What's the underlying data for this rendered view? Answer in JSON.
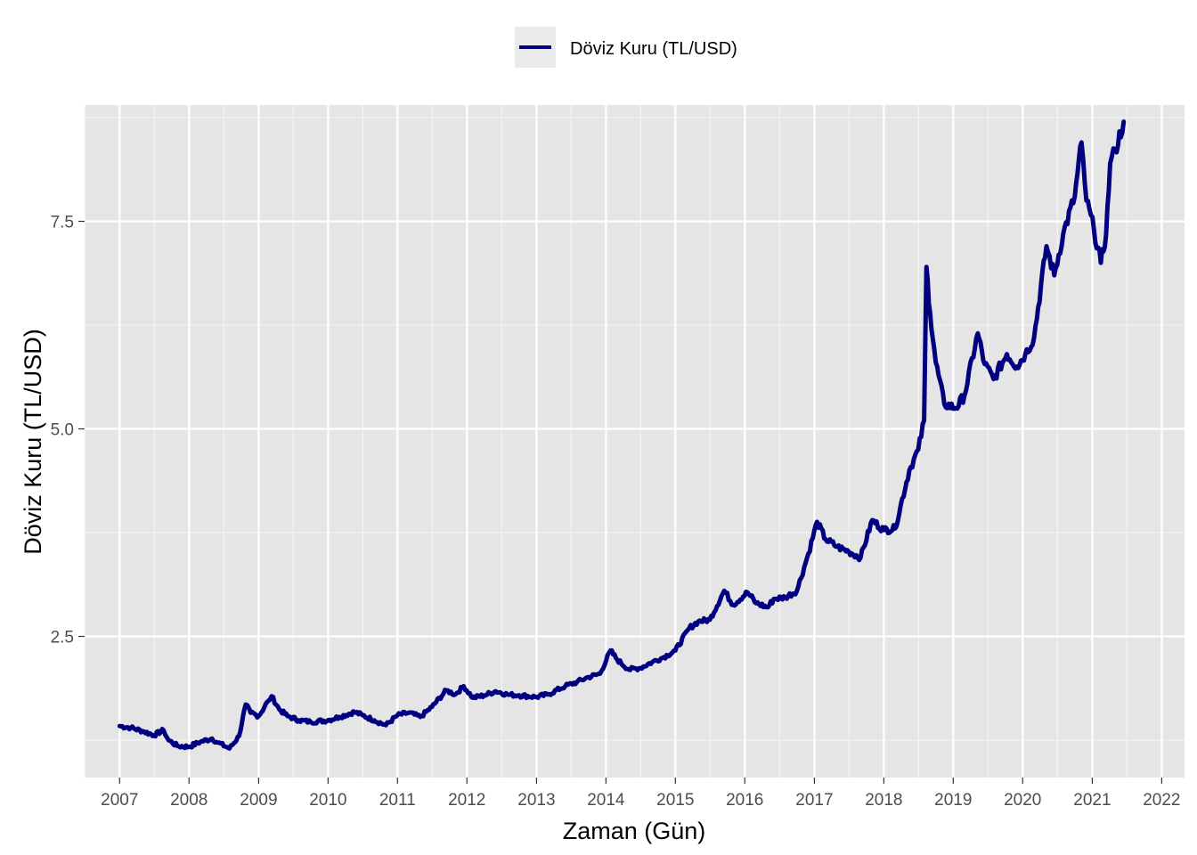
{
  "chart_data": {
    "type": "line",
    "title": "",
    "xlabel": "Zaman (Gün)",
    "ylabel": "Döviz Kuru (TL/USD)",
    "xlim": [
      "2006-07-01",
      "2022-05-01"
    ],
    "ylim": [
      0.8,
      8.9
    ],
    "x_ticks": [
      "2007",
      "2008",
      "2009",
      "2010",
      "2011",
      "2012",
      "2013",
      "2014",
      "2015",
      "2016",
      "2017",
      "2018",
      "2019",
      "2020",
      "2021",
      "2022"
    ],
    "y_ticks": [
      2.5,
      5.0,
      7.5
    ],
    "y_tick_labels": [
      "2.5",
      "5.0",
      "7.5"
    ],
    "grid": true,
    "legend_position": "top",
    "series": [
      {
        "name": "Döviz Kuru (TL/USD)",
        "color": "#000080",
        "points": [
          [
            "2007-01-01",
            1.42
          ],
          [
            "2007-03-01",
            1.4
          ],
          [
            "2007-05-01",
            1.36
          ],
          [
            "2007-07-01",
            1.31
          ],
          [
            "2007-08-20",
            1.37
          ],
          [
            "2007-09-15",
            1.25
          ],
          [
            "2007-11-01",
            1.18
          ],
          [
            "2008-01-01",
            1.17
          ],
          [
            "2008-03-01",
            1.23
          ],
          [
            "2008-05-01",
            1.27
          ],
          [
            "2008-06-01",
            1.22
          ],
          [
            "2008-08-01",
            1.15
          ],
          [
            "2008-09-20",
            1.3
          ],
          [
            "2008-10-25",
            1.68
          ],
          [
            "2008-11-20",
            1.58
          ],
          [
            "2009-01-01",
            1.54
          ],
          [
            "2009-02-20",
            1.72
          ],
          [
            "2009-03-10",
            1.78
          ],
          [
            "2009-04-20",
            1.62
          ],
          [
            "2009-06-01",
            1.54
          ],
          [
            "2009-08-01",
            1.49
          ],
          [
            "2009-10-01",
            1.47
          ],
          [
            "2010-01-01",
            1.49
          ],
          [
            "2010-03-01",
            1.53
          ],
          [
            "2010-05-20",
            1.59
          ],
          [
            "2010-07-01",
            1.55
          ],
          [
            "2010-09-01",
            1.49
          ],
          [
            "2010-11-01",
            1.43
          ],
          [
            "2011-01-01",
            1.55
          ],
          [
            "2011-03-01",
            1.58
          ],
          [
            "2011-05-01",
            1.53
          ],
          [
            "2011-07-01",
            1.65
          ],
          [
            "2011-09-15",
            1.85
          ],
          [
            "2011-11-01",
            1.8
          ],
          [
            "2011-12-15",
            1.9
          ],
          [
            "2012-02-01",
            1.76
          ],
          [
            "2012-04-01",
            1.79
          ],
          [
            "2012-06-01",
            1.84
          ],
          [
            "2012-08-01",
            1.8
          ],
          [
            "2012-10-01",
            1.79
          ],
          [
            "2013-01-01",
            1.77
          ],
          [
            "2013-03-01",
            1.8
          ],
          [
            "2013-06-01",
            1.9
          ],
          [
            "2013-08-01",
            1.95
          ],
          [
            "2013-10-01",
            2.01
          ],
          [
            "2013-12-01",
            2.05
          ],
          [
            "2014-01-25",
            2.33
          ],
          [
            "2014-03-01",
            2.22
          ],
          [
            "2014-05-01",
            2.1
          ],
          [
            "2014-07-01",
            2.12
          ],
          [
            "2014-09-01",
            2.19
          ],
          [
            "2014-11-01",
            2.25
          ],
          [
            "2015-01-01",
            2.33
          ],
          [
            "2015-03-15",
            2.6
          ],
          [
            "2015-05-01",
            2.68
          ],
          [
            "2015-07-01",
            2.7
          ],
          [
            "2015-09-15",
            3.05
          ],
          [
            "2015-11-01",
            2.88
          ],
          [
            "2016-01-15",
            3.03
          ],
          [
            "2016-03-01",
            2.9
          ],
          [
            "2016-05-01",
            2.85
          ],
          [
            "2016-06-01",
            2.95
          ],
          [
            "2016-08-01",
            2.97
          ],
          [
            "2016-10-01",
            3.05
          ],
          [
            "2016-12-01",
            3.5
          ],
          [
            "2017-01-15",
            3.88
          ],
          [
            "2017-03-01",
            3.67
          ],
          [
            "2017-05-01",
            3.58
          ],
          [
            "2017-07-01",
            3.52
          ],
          [
            "2017-09-01",
            3.45
          ],
          [
            "2017-11-01",
            3.9
          ],
          [
            "2018-01-01",
            3.78
          ],
          [
            "2018-03-01",
            3.8
          ],
          [
            "2018-05-15",
            4.5
          ],
          [
            "2018-07-01",
            4.75
          ],
          [
            "2018-08-01",
            5.1
          ],
          [
            "2018-08-13",
            6.95
          ],
          [
            "2018-09-01",
            6.4
          ],
          [
            "2018-10-01",
            5.8
          ],
          [
            "2018-11-15",
            5.3
          ],
          [
            "2019-01-15",
            5.25
          ],
          [
            "2019-03-01",
            5.4
          ],
          [
            "2019-05-10",
            6.15
          ],
          [
            "2019-06-15",
            5.78
          ],
          [
            "2019-08-01",
            5.6
          ],
          [
            "2019-10-10",
            5.9
          ],
          [
            "2019-12-01",
            5.75
          ],
          [
            "2020-01-15",
            5.9
          ],
          [
            "2020-03-01",
            6.1
          ],
          [
            "2020-05-05",
            7.2
          ],
          [
            "2020-06-15",
            6.85
          ],
          [
            "2020-08-01",
            7.35
          ],
          [
            "2020-10-01",
            7.8
          ],
          [
            "2020-11-05",
            8.45
          ],
          [
            "2020-12-01",
            7.75
          ],
          [
            "2021-01-10",
            7.4
          ],
          [
            "2021-02-15",
            7.0
          ],
          [
            "2021-03-15",
            7.35
          ],
          [
            "2021-04-05",
            8.2
          ],
          [
            "2021-05-01",
            8.35
          ],
          [
            "2021-06-15",
            8.7
          ]
        ]
      }
    ]
  }
}
